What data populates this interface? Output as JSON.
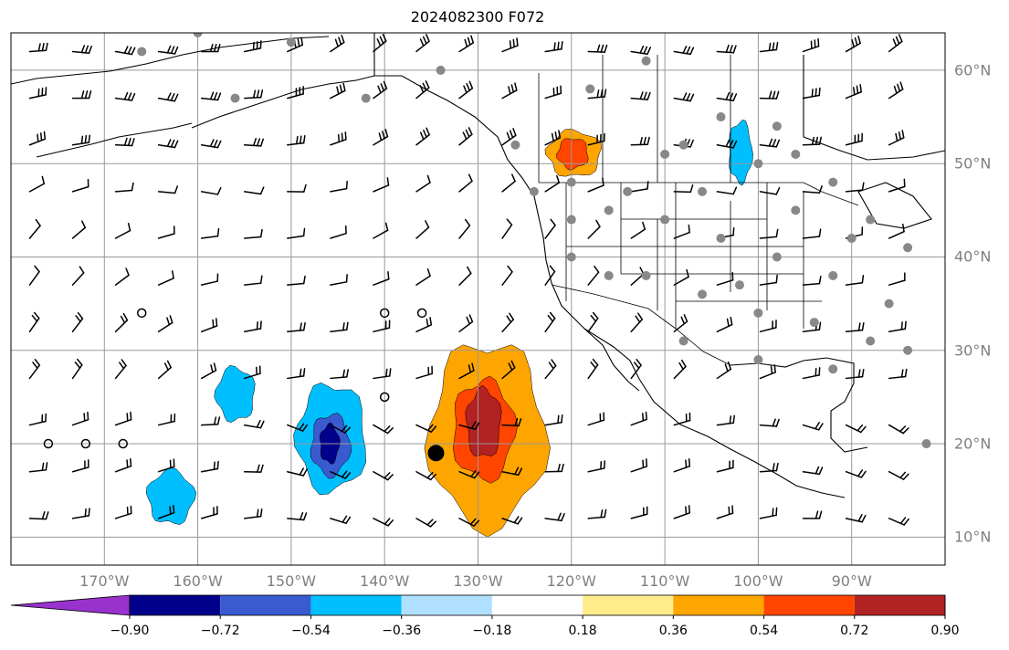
{
  "title": "2024082300 F072",
  "map": {
    "projection": "PlateCarree",
    "extent_lon": [
      -180,
      -80
    ],
    "extent_lat": [
      7,
      64
    ],
    "gridlines": true,
    "lon_ticks": [
      {
        "value": -170,
        "label": "170°W"
      },
      {
        "value": -160,
        "label": "160°W"
      },
      {
        "value": -150,
        "label": "150°W"
      },
      {
        "value": -140,
        "label": "140°W"
      },
      {
        "value": -130,
        "label": "130°W"
      },
      {
        "value": -120,
        "label": "120°W"
      },
      {
        "value": -110,
        "label": "110°W"
      },
      {
        "value": -100,
        "label": "100°W"
      },
      {
        "value": -90,
        "label": "90°W"
      }
    ],
    "lat_ticks": [
      {
        "value": 10,
        "label": "10°N"
      },
      {
        "value": 20,
        "label": "20°N"
      },
      {
        "value": 30,
        "label": "30°N"
      },
      {
        "value": 40,
        "label": "40°N"
      },
      {
        "value": 50,
        "label": "50°N"
      },
      {
        "value": 60,
        "label": "60°N"
      }
    ],
    "tick_label_color": "#7f7f7f",
    "marker": {
      "lon": -134.5,
      "lat": 19
    }
  },
  "colorbar": {
    "extend": "both",
    "boundaries": [
      -0.9,
      -0.72,
      -0.54,
      -0.36,
      -0.18,
      0.18,
      0.36,
      0.54,
      0.72,
      0.9
    ],
    "tick_labels": [
      "−0.90",
      "−0.72",
      "−0.54",
      "−0.36",
      "−0.18",
      "0.18",
      "0.36",
      "0.54",
      "0.72",
      "0.90"
    ],
    "under_color": "#9932cc",
    "over_color": "#ff88aa",
    "colors": [
      "#00008b",
      "#3a5bd0",
      "#00bfff",
      "#b0e0ff",
      "#ffffff",
      "#ffec8b",
      "#ffa500",
      "#ff4500",
      "#b22222"
    ]
  },
  "chart_data": {
    "type": "heatmap",
    "title": "2024082300 F072",
    "x_range": [
      -180,
      -80
    ],
    "y_range": [
      7,
      64
    ],
    "anomaly_regions": [
      {
        "level": "0.36",
        "color": "#ffa500",
        "center": [
          -129,
          22
        ],
        "extent_lon": [
          -137,
          -122
        ],
        "extent_lat": [
          9,
          33
        ]
      },
      {
        "level": "0.54",
        "color": "#ff4500",
        "center": [
          -129.5,
          22
        ],
        "extent_lon": [
          -133,
          -125
        ],
        "extent_lat": [
          15,
          28
        ]
      },
      {
        "level": "0.72",
        "color": "#b22222",
        "center": [
          -129.5,
          22.5
        ],
        "extent_lon": [
          -131.5,
          -127
        ],
        "extent_lat": [
          18,
          27
        ]
      },
      {
        "level": "−0.36",
        "color": "#00bfff",
        "center": [
          -146,
          21
        ],
        "extent_lon": [
          -150,
          -141
        ],
        "extent_lat": [
          13,
          27
        ]
      },
      {
        "level": "−0.54",
        "color": "#3a5bd0",
        "center": [
          -146,
          20
        ],
        "extent_lon": [
          -148.5,
          -143.5
        ],
        "extent_lat": [
          15,
          23
        ]
      },
      {
        "level": "−0.72",
        "color": "#00008b",
        "center": [
          -146,
          20
        ],
        "extent_lon": [
          -147.5,
          -145
        ],
        "extent_lat": [
          17,
          22
        ]
      },
      {
        "level": "0.36",
        "color": "#ffa500",
        "center": [
          -120,
          51
        ],
        "extent_lon": [
          -123,
          -116
        ],
        "extent_lat": [
          48,
          54
        ]
      },
      {
        "level": "0.54",
        "color": "#ff4500",
        "center": [
          -120,
          51
        ],
        "extent_lon": [
          -122,
          -118
        ],
        "extent_lat": [
          49,
          53
        ]
      },
      {
        "level": "−0.36",
        "color": "#00bfff",
        "center": [
          -102,
          51
        ],
        "extent_lon": [
          -103.5,
          -100.5
        ],
        "extent_lat": [
          47,
          55
        ]
      },
      {
        "level": "−0.36",
        "color": "#00bfff",
        "center": [
          -163,
          14
        ],
        "extent_lon": [
          -166,
          -160
        ],
        "extent_lat": [
          10,
          17
        ]
      },
      {
        "level": "−0.36",
        "color": "#00bfff",
        "center": [
          -156,
          25
        ],
        "extent_lon": [
          -158,
          -153
        ],
        "extent_lat": [
          21,
          28
        ]
      }
    ]
  }
}
